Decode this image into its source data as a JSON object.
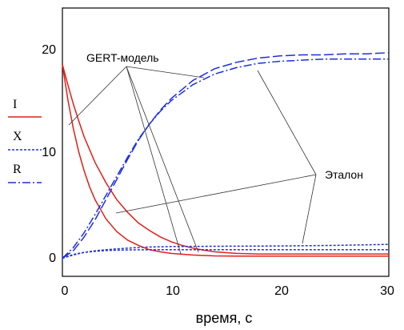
{
  "chart_data": {
    "type": "line",
    "xlabel": "время, с",
    "ylabel": "",
    "xlim": [
      0,
      30
    ],
    "ylim": [
      -1.7,
      23.5
    ],
    "xticks": [
      0,
      10,
      20,
      30
    ],
    "yticks": [
      0,
      10,
      20
    ],
    "grid": false,
    "legend": {
      "placement": "left",
      "entries": [
        {
          "label": "I",
          "color": "#e0201a",
          "style": "solid"
        },
        {
          "label": "X",
          "color": "#1e2ee0",
          "style": "dotted"
        },
        {
          "label": "R",
          "color": "#1e2ee0",
          "style": "dashdot"
        }
      ]
    },
    "annotations": [
      {
        "text": "GERT-модель"
      },
      {
        "text": "Эталон"
      }
    ],
    "series": [
      {
        "name": "I",
        "variant": "GERT-модель",
        "color": "#e0201a",
        "style": "solid",
        "x": [
          0,
          0.5,
          1,
          1.5,
          2,
          2.5,
          3,
          4,
          5,
          6,
          7,
          8,
          9,
          10,
          12,
          14,
          16,
          18,
          20,
          22,
          25,
          30
        ],
        "y": [
          18.2,
          14.9,
          12.2,
          10.0,
          8.2,
          6.7,
          5.5,
          3.7,
          2.5,
          1.7,
          1.2,
          0.8,
          0.6,
          0.45,
          0.3,
          0.22,
          0.2,
          0.2,
          0.2,
          0.2,
          0.2,
          0.2
        ]
      },
      {
        "name": "I",
        "variant": "Эталон",
        "color": "#e0201a",
        "style": "solid",
        "x": [
          0,
          0.5,
          1,
          1.5,
          2,
          3,
          4,
          5,
          6,
          7,
          8,
          9,
          10,
          11,
          12,
          13,
          14,
          16,
          18,
          20,
          25,
          30
        ],
        "y": [
          18.2,
          16.3,
          14.5,
          12.9,
          11.4,
          9.0,
          7.1,
          5.5,
          4.3,
          3.3,
          2.6,
          2.0,
          1.55,
          1.2,
          0.95,
          0.75,
          0.6,
          0.45,
          0.4,
          0.4,
          0.4,
          0.4
        ]
      },
      {
        "name": "X",
        "variant": "GERT-модель",
        "color": "#1e2ee0",
        "style": "dotted",
        "x": [
          0,
          1,
          2,
          3,
          4,
          5,
          6,
          8,
          10,
          14,
          20,
          25,
          30
        ],
        "y": [
          0,
          0.35,
          0.55,
          0.65,
          0.72,
          0.75,
          0.78,
          0.8,
          0.8,
          0.8,
          0.8,
          0.8,
          0.8
        ]
      },
      {
        "name": "X",
        "variant": "Эталон",
        "color": "#1e2ee0",
        "style": "dotted",
        "x": [
          0,
          1,
          2,
          3,
          4,
          5,
          6,
          8,
          10,
          14,
          20,
          25,
          30
        ],
        "y": [
          0,
          0.3,
          0.55,
          0.7,
          0.8,
          0.88,
          0.95,
          1.05,
          1.1,
          1.12,
          1.15,
          1.2,
          1.3
        ]
      },
      {
        "name": "R",
        "variant": "GERT-модель",
        "color": "#1e2ee0",
        "style": "dashdot",
        "x": [
          0,
          1,
          2,
          3,
          4,
          5,
          6,
          7,
          8,
          9,
          10,
          12,
          14,
          16,
          18,
          20,
          22,
          24,
          26,
          28,
          30
        ],
        "y": [
          0,
          1.0,
          2.4,
          4.1,
          5.9,
          7.7,
          9.5,
          11.2,
          12.6,
          13.8,
          14.8,
          16.3,
          17.3,
          17.9,
          18.3,
          18.5,
          18.6,
          18.7,
          18.7,
          18.7,
          18.7
        ]
      },
      {
        "name": "R",
        "variant": "Эталон",
        "color": "#1e2ee0",
        "style": "dashed",
        "x": [
          0,
          1,
          2,
          3,
          4,
          5,
          6,
          7,
          8,
          9,
          10,
          12,
          14,
          16,
          18,
          20,
          22,
          24,
          26,
          28,
          30
        ],
        "y": [
          0,
          0.7,
          2.0,
          3.6,
          5.5,
          7.4,
          9.3,
          11.1,
          12.6,
          13.9,
          15.0,
          16.7,
          17.8,
          18.4,
          18.8,
          19.0,
          19.1,
          19.1,
          19.2,
          19.2,
          19.3
        ]
      }
    ]
  }
}
